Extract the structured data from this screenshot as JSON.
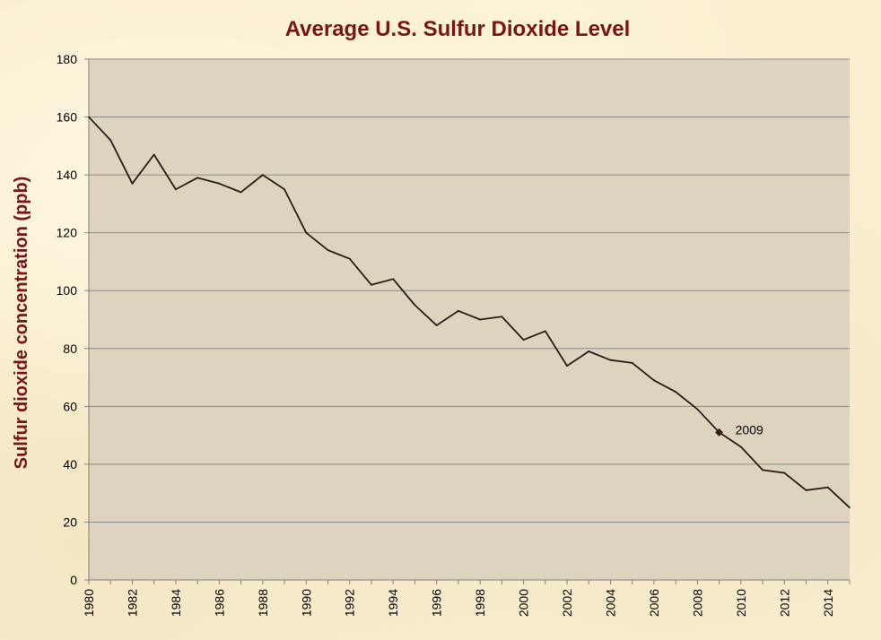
{
  "colors": {
    "plot_background": "#ddd4bf",
    "gridline": "#8c8c8c",
    "axis": "#808080",
    "series_line": "#2e1a14",
    "marker": "#3a1a17",
    "title": "#7b1416"
  },
  "chart_data": {
    "type": "line",
    "title": "Average U.S. Sulfur Dioxide Level",
    "xlabel": "",
    "ylabel": "Sulfur dioxide concentration (ppb)",
    "xlim": [
      1980,
      2015
    ],
    "ylim": [
      0,
      180
    ],
    "y_ticks": [
      0,
      20,
      40,
      60,
      80,
      100,
      120,
      140,
      160,
      180
    ],
    "x_tick_labels": [
      "1980",
      "1982",
      "1984",
      "1986",
      "1988",
      "1990",
      "1992",
      "1994",
      "1996",
      "1998",
      "2000",
      "2002",
      "2004",
      "2006",
      "2008",
      "2010",
      "2012",
      "2014"
    ],
    "grid": "horizontal",
    "legend": "none",
    "x": [
      1980,
      1981,
      1982,
      1983,
      1984,
      1985,
      1986,
      1987,
      1988,
      1989,
      1990,
      1991,
      1992,
      1993,
      1994,
      1995,
      1996,
      1997,
      1998,
      1999,
      2000,
      2001,
      2002,
      2003,
      2004,
      2005,
      2006,
      2007,
      2008,
      2009,
      2010,
      2011,
      2012,
      2013,
      2014,
      2015
    ],
    "values": [
      160,
      152,
      137,
      147,
      135,
      139,
      137,
      134,
      140,
      135,
      120,
      114,
      111,
      102,
      104,
      95,
      88,
      93,
      90,
      91,
      83,
      86,
      74,
      79,
      76,
      75,
      69,
      65,
      59,
      51,
      46,
      38,
      37,
      31,
      32,
      25
    ],
    "annotations": [
      {
        "x": 2009,
        "y": 51,
        "label": "2009",
        "marker": "diamond"
      }
    ]
  }
}
